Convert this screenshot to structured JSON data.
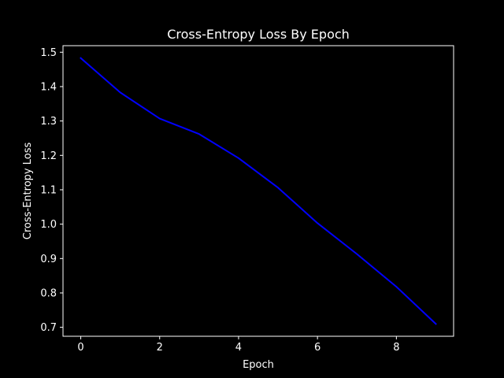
{
  "chart_data": {
    "type": "line",
    "title": "Cross-Entropy Loss By Epoch",
    "xlabel": "Epoch",
    "ylabel": "Cross-Entropy Loss",
    "xlim": [
      -0.45,
      9.45
    ],
    "ylim": [
      0.674,
      1.519
    ],
    "x_ticks": [
      0,
      2,
      4,
      6,
      8
    ],
    "y_ticks": [
      0.7,
      0.8,
      0.9,
      1.0,
      1.1,
      1.2,
      1.3,
      1.4,
      1.5
    ],
    "x_tick_labels": [
      "0",
      "2",
      "4",
      "6",
      "8"
    ],
    "y_tick_labels": [
      "0.7",
      "0.8",
      "0.9",
      "1.0",
      "1.1",
      "1.2",
      "1.3",
      "1.4",
      "1.5"
    ],
    "grid": false,
    "legend": "none",
    "series": [
      {
        "color": "#0000ff",
        "x": [
          0,
          1,
          2,
          3,
          4,
          5,
          6,
          7,
          8,
          9
        ],
        "y": [
          1.483,
          1.383,
          1.307,
          1.262,
          1.192,
          1.106,
          1.003,
          0.913,
          0.818,
          0.71
        ]
      }
    ],
    "colors": {
      "background": "#000000",
      "foreground": "#ffffff"
    }
  }
}
